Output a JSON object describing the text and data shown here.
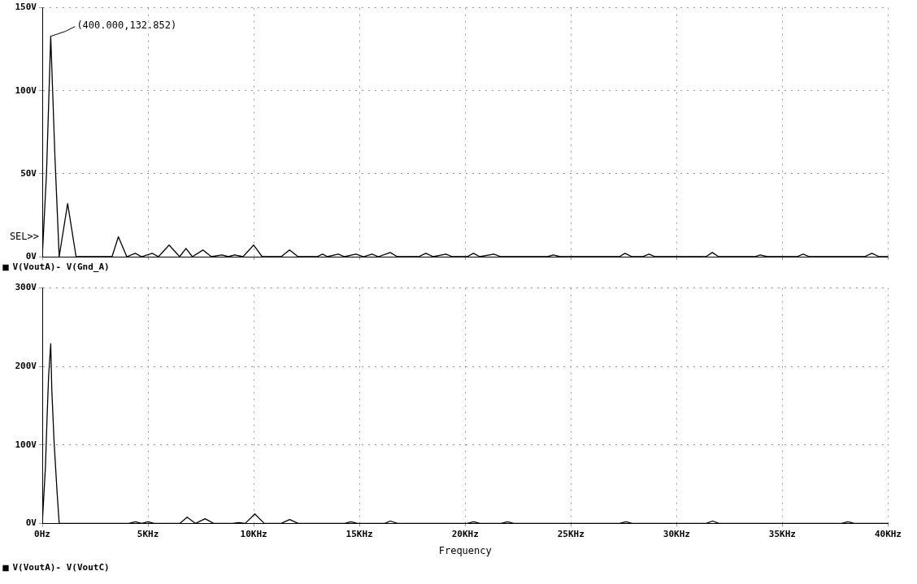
{
  "chart_data": [
    {
      "type": "line",
      "annotations": [
        {
          "text": "(400.000,132.852)",
          "x": 0.4,
          "y": 132.852
        },
        "SEL>>"
      ],
      "x": [
        0,
        0.2,
        0.4,
        0.6,
        0.8,
        1.2,
        1.6,
        3.3,
        3.6,
        4.0,
        4.4,
        4.7,
        5.2,
        5.5,
        6.0,
        6.5,
        6.8,
        7.1,
        7.6,
        8.0,
        8.5,
        8.8,
        9.1,
        9.5,
        10.0,
        10.4,
        11.3,
        11.7,
        12.1,
        13.0,
        13.26,
        13.5,
        14.0,
        14.3,
        14.84,
        15.2,
        15.6,
        15.9,
        16.46,
        16.8,
        17.8,
        18.15,
        18.5,
        19.1,
        19.4,
        20.1,
        20.4,
        20.7,
        21.36,
        21.7,
        23.9,
        24.18,
        24.5,
        27.3,
        27.57,
        27.9,
        28.4,
        28.7,
        29.0,
        31.4,
        31.7,
        32.0,
        33.7,
        33.97,
        34.3,
        35.7,
        36.0,
        36.3,
        38.9,
        39.25,
        39.6,
        40.0
      ],
      "series": [
        {
          "name": "V(VoutA)- V(Gnd_A)",
          "color": "#000000",
          "values": [
            0,
            50,
            132.852,
            60,
            0,
            32,
            0,
            0,
            12,
            0,
            2,
            0,
            2,
            0,
            7,
            0,
            5,
            0,
            4,
            0,
            1,
            0,
            1,
            0,
            7,
            0,
            0,
            4,
            0,
            0,
            1.5,
            0,
            1.5,
            0,
            1.5,
            0,
            1.5,
            0,
            2.5,
            0,
            0,
            2,
            0,
            1.5,
            0,
            0,
            2,
            0,
            1.5,
            0,
            0,
            1,
            0,
            0,
            2,
            0,
            0,
            1.5,
            0,
            0,
            2.5,
            0,
            0,
            1,
            0,
            0,
            1.5,
            0,
            0,
            2,
            0,
            0
          ]
        }
      ],
      "xlim": [
        0,
        40
      ],
      "xticks": [
        {
          "value": 0,
          "label": null
        },
        {
          "value": 5,
          "label": null
        },
        {
          "value": 10,
          "label": null
        },
        {
          "value": 15,
          "label": null
        },
        {
          "value": 20,
          "label": null
        },
        {
          "value": 25,
          "label": null
        },
        {
          "value": 30,
          "label": null
        },
        {
          "value": 35,
          "label": null
        },
        {
          "value": 40,
          "label": null
        }
      ],
      "ylim": [
        0,
        150
      ],
      "yticks": [
        {
          "value": 0,
          "label": "0V"
        },
        {
          "value": 50,
          "label": "50V"
        },
        {
          "value": 100,
          "label": "100V"
        },
        {
          "value": 150,
          "label": "150V"
        }
      ],
      "tick_labels": "y",
      "grid": true,
      "legend": "bottom left"
    },
    {
      "type": "line",
      "xlabel": "Frequency",
      "x": [
        0,
        0.15,
        0.23,
        0.3,
        0.4,
        0.45,
        0.56,
        0.7,
        0.8,
        4.1,
        4.4,
        4.7,
        5.0,
        5.3,
        5.6,
        6.5,
        6.85,
        7.25,
        7.7,
        8.1,
        9.0,
        9.3,
        9.6,
        10.05,
        10.5,
        11.3,
        11.7,
        12.1,
        14.3,
        14.6,
        14.9,
        16.2,
        16.46,
        16.8,
        20.1,
        20.4,
        20.7,
        21.7,
        22.0,
        22.3,
        27.3,
        27.6,
        27.9,
        31.4,
        31.7,
        32.0,
        37.8,
        38.1,
        38.4,
        40.0
      ],
      "series": [
        {
          "name": "V(VoutA)- V(VoutC)",
          "color": "#000000",
          "values": [
            0,
            72,
            137,
            188,
            229,
            171,
            103,
            40,
            0,
            0,
            2,
            0,
            2,
            0,
            0,
            0,
            8,
            0,
            6,
            0,
            0,
            1,
            0,
            12,
            0,
            0,
            5,
            0,
            0,
            2,
            0,
            0,
            3,
            0,
            0,
            2,
            0,
            0,
            2,
            0,
            0,
            2,
            0,
            0,
            3,
            0,
            0,
            2,
            0,
            0
          ]
        }
      ],
      "xlim": [
        0,
        40
      ],
      "xticks": [
        {
          "value": 0,
          "label": "0Hz"
        },
        {
          "value": 5,
          "label": "5KHz"
        },
        {
          "value": 10,
          "label": "10KHz"
        },
        {
          "value": 15,
          "label": "15KHz"
        },
        {
          "value": 20,
          "label": "20KHz"
        },
        {
          "value": 25,
          "label": "25KHz"
        },
        {
          "value": 30,
          "label": "30KHz"
        },
        {
          "value": 35,
          "label": "35KHz"
        },
        {
          "value": 40,
          "label": "40KHz"
        }
      ],
      "ylim": [
        0,
        300
      ],
      "yticks": [
        {
          "value": 0,
          "label": "0V"
        },
        {
          "value": 100,
          "label": "100V"
        },
        {
          "value": 200,
          "label": "200V"
        },
        {
          "value": 300,
          "label": "300V"
        }
      ],
      "grid": true,
      "legend": "bottom left"
    }
  ]
}
